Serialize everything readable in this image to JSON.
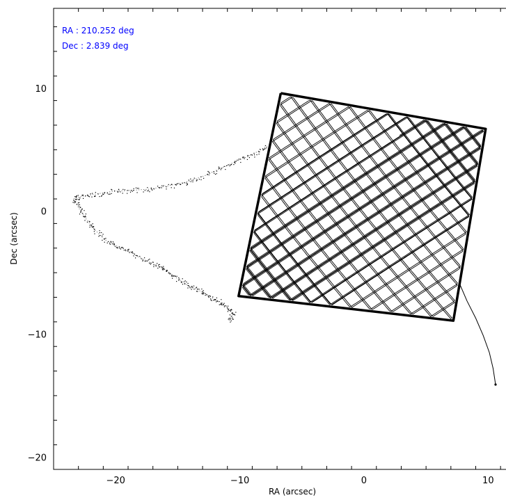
{
  "chart_data": {
    "type": "scatter",
    "title": "",
    "xlabel": "RA (arcsec)",
    "ylabel": "Dec (arcsec)",
    "xlim": [
      -25,
      12
    ],
    "ylim": [
      -21,
      16.5
    ],
    "grid": false,
    "x_ticks": [
      -20,
      -10,
      0,
      10
    ],
    "x_tick_labels": [
      "−20",
      "−10",
      "0",
      "10"
    ],
    "y_ticks": [
      -20,
      -10,
      0,
      10
    ],
    "y_tick_labels": [
      "−20",
      "−10",
      "0",
      "10"
    ],
    "annotations": [
      {
        "text": "RA : 210.252 deg",
        "color": "#0000ff"
      },
      {
        "text": "Dec : 2.839 deg",
        "color": "#0000ff"
      }
    ],
    "series": [
      {
        "style": "raster-square",
        "color": "#000000",
        "corners": [
          [
            -6.7,
            9.6
          ],
          [
            9.8,
            6.7
          ],
          [
            7.2,
            -8.9
          ],
          [
            -10.1,
            -6.9
          ]
        ],
        "start": [
          5.7,
          -9.7
        ]
      },
      {
        "style": "dotted-trail",
        "color": "#000000",
        "points": [
          [
            -7.8,
            5.3
          ],
          [
            -9.0,
            4.6
          ],
          [
            -10.2,
            4.1
          ],
          [
            -11.5,
            3.5
          ],
          [
            -12.8,
            2.9
          ],
          [
            -14.2,
            2.4
          ],
          [
            -15.6,
            2.1
          ],
          [
            -17.2,
            1.8
          ],
          [
            -18.8,
            1.7
          ],
          [
            -20.3,
            1.6
          ],
          [
            -21.6,
            1.4
          ],
          [
            -22.8,
            1.2
          ],
          [
            -23.4,
            1.0
          ],
          [
            -23.0,
            0.3
          ],
          [
            -22.4,
            -0.6
          ],
          [
            -21.7,
            -1.5
          ],
          [
            -20.9,
            -2.3
          ],
          [
            -20.0,
            -2.8
          ],
          [
            -19.0,
            -3.2
          ],
          [
            -18.0,
            -3.8
          ],
          [
            -17.0,
            -4.3
          ],
          [
            -16.2,
            -4.6
          ],
          [
            -15.4,
            -5.2
          ],
          [
            -14.6,
            -5.8
          ],
          [
            -13.8,
            -6.2
          ],
          [
            -13.0,
            -6.6
          ],
          [
            -12.3,
            -7.0
          ],
          [
            -11.6,
            -7.4
          ],
          [
            -10.9,
            -7.9
          ],
          [
            -10.5,
            -8.4
          ],
          [
            -10.9,
            -8.9
          ]
        ]
      },
      {
        "style": "solid-tail",
        "color": "#000000",
        "points": [
          [
            7.7,
            -5.9
          ],
          [
            8.3,
            -7.3
          ],
          [
            9.0,
            -8.7
          ],
          [
            9.6,
            -10.1
          ],
          [
            10.1,
            -11.5
          ],
          [
            10.4,
            -12.8
          ],
          [
            10.6,
            -14.1
          ]
        ]
      }
    ]
  }
}
